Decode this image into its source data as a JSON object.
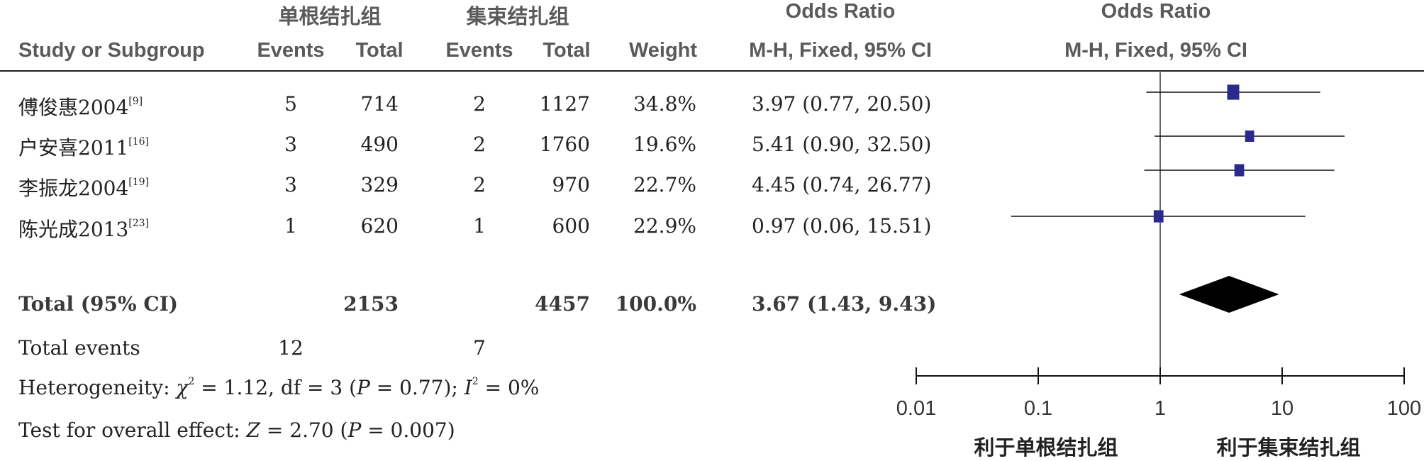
{
  "header": {
    "group1": "单根结扎组",
    "group2": "集束结扎组",
    "or_title_table": "Odds Ratio",
    "or_title_plot": "Odds Ratio",
    "study_col": "Study or Subgroup",
    "events1": "Events",
    "total1": "Total",
    "events2": "Events",
    "total2": "Total",
    "weight": "Weight",
    "method_table": "M-H, Fixed, 95% CI",
    "method_plot": "M-H, Fixed, 95% CI"
  },
  "studies": [
    {
      "name": "傅俊惠2004",
      "ref": "[9]",
      "events1": "5",
      "total1": "714",
      "events2": "2",
      "total2": "1127",
      "weight": "34.8%",
      "ci_text": "3.97 (0.77, 20.50)"
    },
    {
      "name": "户安喜2011",
      "ref": "[16]",
      "events1": "3",
      "total1": "490",
      "events2": "2",
      "total2": "1760",
      "weight": "19.6%",
      "ci_text": "5.41 (0.90, 32.50)"
    },
    {
      "name": "李振龙2004",
      "ref": "[19]",
      "events1": "3",
      "total1": "329",
      "events2": "2",
      "total2": "970",
      "weight": "22.7%",
      "ci_text": "4.45 (0.74, 26.77)"
    },
    {
      "name": "陈光成2013",
      "ref": "[23]",
      "events1": "1",
      "total1": "620",
      "events2": "1",
      "total2": "600",
      "weight": "22.9%",
      "ci_text": "0.97 (0.06, 15.51)"
    }
  ],
  "total": {
    "label": "Total (95% CI)",
    "total1": "2153",
    "total2": "4457",
    "weight": "100.0%",
    "ci_text": "3.67 (1.43, 9.43)"
  },
  "events": {
    "label": "Total events",
    "events1": "12",
    "events2": "7"
  },
  "stats": {
    "het_prefix": "Heterogeneity: ",
    "chi": "χ",
    "het_mid": " = 1.12, df = 3 (",
    "p": "P",
    "het_p": " = 0.77); ",
    "i": "I",
    "het_end": " = 0%",
    "overall_prefix": "Test for overall effect: ",
    "z": "Z",
    "overall_mid": " = 2.70 (",
    "overall_p": " = 0.007)",
    "sup2": "2"
  },
  "axis": {
    "tick_labels": [
      "0.01",
      "0.1",
      "1",
      "10",
      "100"
    ],
    "favours_left": "利于单根结扎组",
    "favours_right": "利于集束结扎组"
  },
  "chart_data": {
    "type": "forest",
    "scale": "log",
    "xlim": [
      0.01,
      100
    ],
    "ticks": [
      0.01,
      0.1,
      1,
      10,
      100
    ],
    "null_value": 1,
    "marker_color": "#2a2a8c",
    "studies": [
      {
        "or": 3.97,
        "lower": 0.77,
        "upper": 20.5,
        "weight": 34.8
      },
      {
        "or": 5.41,
        "lower": 0.9,
        "upper": 32.5,
        "weight": 19.6
      },
      {
        "or": 4.45,
        "lower": 0.74,
        "upper": 26.77,
        "weight": 22.7
      },
      {
        "or": 0.97,
        "lower": 0.06,
        "upper": 15.51,
        "weight": 22.9
      }
    ],
    "pooled": {
      "or": 3.67,
      "lower": 1.43,
      "upper": 9.43
    }
  }
}
